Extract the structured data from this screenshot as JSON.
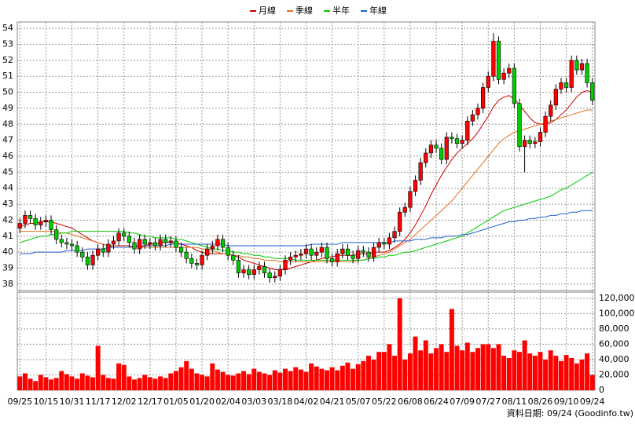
{
  "chart_data": [
    {
      "type": "candlestick",
      "categories": [
        "09/25",
        null,
        null,
        null,
        null,
        "10/15",
        null,
        null,
        null,
        null,
        "10/31",
        null,
        null,
        null,
        null,
        "11/17",
        null,
        null,
        null,
        null,
        "12/02",
        null,
        null,
        null,
        null,
        "12/17",
        null,
        null,
        null,
        null,
        "01/05",
        null,
        null,
        null,
        null,
        "01/20",
        null,
        null,
        null,
        null,
        "02/04",
        null,
        null,
        null,
        null,
        "03/03",
        null,
        null,
        null,
        null,
        "03/18",
        null,
        null,
        null,
        null,
        "04/02",
        null,
        null,
        null,
        null,
        "04/21",
        null,
        null,
        null,
        null,
        "05/07",
        null,
        null,
        null,
        null,
        "05/22",
        null,
        null,
        null,
        null,
        "06/08",
        null,
        null,
        null,
        null,
        "06/24",
        null,
        null,
        null,
        null,
        "07/09",
        null,
        null,
        null,
        null,
        "07/27",
        null,
        null,
        null,
        null,
        "08/11",
        null,
        null,
        null,
        null,
        "08/26",
        null,
        null,
        null,
        null,
        "09/10",
        null,
        null,
        null,
        null,
        "09/24"
      ],
      "open": [
        41.5,
        41.8,
        42.3,
        42.1,
        41.7,
        41.9,
        42.0,
        41.4,
        40.8,
        40.6,
        40.5,
        40.4,
        40.0,
        39.7,
        39.2,
        39.8,
        40.2,
        40.0,
        40.5,
        40.7,
        41.2,
        41.0,
        40.6,
        40.2,
        40.8,
        40.5,
        40.6,
        40.4,
        40.8,
        40.6,
        40.7,
        40.3,
        40.0,
        39.6,
        39.3,
        39.2,
        39.8,
        40.2,
        40.4,
        40.8,
        40.3,
        39.8,
        39.5,
        38.7,
        38.9,
        38.6,
        38.9,
        39.1,
        38.7,
        38.4,
        38.5,
        38.9,
        39.5,
        39.7,
        39.8,
        39.9,
        40.2,
        39.8,
        40.0,
        40.3,
        39.6,
        39.4,
        39.9,
        40.2,
        39.8,
        39.6,
        40.1,
        40.0,
        39.7,
        40.3,
        40.6,
        40.5,
        40.9,
        41.3,
        42.5,
        42.8,
        43.8,
        44.5,
        45.6,
        46.2,
        46.7,
        46.5,
        45.8,
        47.2,
        47.1,
        46.8,
        47.0,
        48.2,
        48.6,
        49.0,
        50.3,
        51.0,
        53.2,
        50.8,
        51.2,
        51.5,
        49.3,
        46.6,
        47.0,
        46.8,
        46.9,
        47.5,
        48.5,
        49.2,
        50.2,
        50.6,
        50.3,
        52.0,
        51.4,
        51.8,
        50.6
      ],
      "high": [
        42.1,
        42.6,
        42.6,
        42.4,
        42.2,
        42.3,
        42.3,
        41.7,
        41.1,
        40.9,
        40.8,
        40.7,
        40.3,
        40.0,
        40.1,
        40.5,
        40.5,
        40.8,
        41.0,
        41.5,
        41.5,
        41.3,
        40.9,
        41.1,
        41.1,
        40.9,
        40.9,
        41.1,
        41.1,
        41.0,
        41.0,
        40.6,
        40.3,
        39.9,
        39.6,
        40.1,
        40.5,
        40.7,
        41.1,
        41.1,
        40.6,
        40.1,
        39.8,
        39.2,
        39.2,
        39.2,
        39.4,
        39.4,
        39.0,
        38.8,
        39.2,
        39.8,
        40.0,
        40.1,
        40.2,
        40.5,
        40.5,
        40.3,
        40.6,
        40.6,
        39.9,
        40.2,
        40.5,
        40.5,
        40.1,
        40.4,
        40.4,
        40.3,
        40.6,
        40.9,
        40.9,
        41.2,
        41.6,
        42.8,
        43.1,
        44.1,
        44.8,
        45.9,
        46.5,
        47.0,
        47.0,
        46.8,
        47.5,
        47.5,
        47.4,
        47.3,
        48.5,
        48.9,
        49.3,
        50.6,
        51.3,
        53.7,
        53.5,
        51.5,
        51.8,
        51.8,
        49.6,
        47.3,
        47.3,
        47.2,
        47.8,
        48.8,
        49.5,
        50.5,
        50.9,
        50.9,
        52.3,
        52.3,
        52.1,
        52.1,
        50.9
      ],
      "low": [
        41.2,
        41.5,
        41.8,
        41.4,
        41.4,
        41.6,
        41.1,
        40.5,
        40.3,
        40.2,
        40.1,
        39.7,
        39.4,
        38.9,
        38.9,
        39.5,
        39.7,
        39.7,
        40.2,
        40.4,
        40.7,
        40.3,
        39.9,
        39.9,
        40.2,
        40.2,
        40.1,
        40.1,
        40.3,
        40.3,
        40.0,
        39.7,
        39.3,
        39.0,
        38.9,
        38.9,
        39.5,
        39.9,
        40.1,
        40.0,
        39.5,
        39.2,
        38.4,
        38.4,
        38.3,
        38.3,
        38.6,
        38.4,
        38.1,
        38.1,
        38.2,
        38.6,
        39.2,
        39.4,
        39.5,
        39.6,
        39.5,
        39.5,
        39.7,
        39.3,
        39.1,
        39.1,
        39.6,
        39.5,
        39.3,
        39.3,
        39.7,
        39.4,
        39.4,
        40.0,
        40.2,
        40.2,
        40.6,
        41.0,
        42.2,
        42.5,
        43.5,
        44.2,
        45.3,
        45.9,
        46.2,
        45.5,
        45.5,
        46.8,
        46.5,
        46.5,
        46.7,
        47.9,
        48.3,
        48.7,
        50.0,
        50.7,
        50.5,
        50.5,
        50.9,
        49.0,
        46.3,
        45.0,
        46.5,
        46.5,
        46.6,
        47.2,
        48.2,
        48.9,
        49.9,
        50.0,
        50.0,
        51.1,
        51.1,
        50.3,
        49.2
      ],
      "close": [
        41.8,
        42.3,
        42.1,
        41.7,
        41.9,
        42.0,
        41.4,
        40.8,
        40.6,
        40.5,
        40.4,
        40.0,
        39.7,
        39.2,
        39.8,
        40.2,
        40.0,
        40.5,
        40.7,
        41.2,
        41.0,
        40.6,
        40.2,
        40.8,
        40.5,
        40.6,
        40.4,
        40.8,
        40.6,
        40.7,
        40.3,
        40.0,
        39.6,
        39.3,
        39.2,
        39.8,
        40.2,
        40.4,
        40.8,
        40.3,
        39.8,
        39.5,
        38.7,
        38.9,
        38.6,
        38.9,
        39.1,
        38.7,
        38.4,
        38.5,
        38.9,
        39.5,
        39.7,
        39.8,
        39.9,
        40.2,
        39.8,
        40.0,
        40.3,
        39.6,
        39.4,
        39.9,
        40.2,
        39.8,
        39.6,
        40.1,
        40.0,
        39.7,
        40.3,
        40.6,
        40.5,
        40.9,
        41.3,
        42.5,
        42.8,
        43.8,
        44.5,
        45.6,
        46.2,
        46.7,
        46.5,
        45.8,
        47.2,
        47.1,
        46.8,
        47.0,
        48.2,
        48.6,
        49.0,
        50.3,
        51.0,
        53.2,
        50.8,
        51.2,
        51.5,
        49.3,
        46.6,
        47.0,
        46.8,
        46.9,
        47.5,
        48.5,
        49.2,
        50.2,
        50.6,
        50.3,
        52.0,
        51.4,
        51.8,
        50.6,
        49.5
      ],
      "up_color": "#ff0000",
      "down_color": "#00cc00",
      "series": [
        {
          "name": "月線",
          "color": "#cc0000",
          "values": [
            41.6,
            41.7,
            41.8,
            41.8,
            41.9,
            41.9,
            41.9,
            41.8,
            41.7,
            41.6,
            41.5,
            41.3,
            41.1,
            40.9,
            40.7,
            40.6,
            40.5,
            40.4,
            40.4,
            40.4,
            40.4,
            40.4,
            40.3,
            40.3,
            40.4,
            40.5,
            40.5,
            40.6,
            40.6,
            40.6,
            40.6,
            40.5,
            40.4,
            40.3,
            40.1,
            40.0,
            39.9,
            39.9,
            39.9,
            39.9,
            39.9,
            39.8,
            39.7,
            39.5,
            39.4,
            39.3,
            39.2,
            39.1,
            39.0,
            38.9,
            38.9,
            38.9,
            39.0,
            39.1,
            39.2,
            39.3,
            39.4,
            39.5,
            39.6,
            39.7,
            39.7,
            39.8,
            39.8,
            39.8,
            39.8,
            39.9,
            39.9,
            39.9,
            40.0,
            40.0,
            40.0,
            40.1,
            40.3,
            40.5,
            40.8,
            41.2,
            41.7,
            42.3,
            42.9,
            43.6,
            44.2,
            44.8,
            45.3,
            45.8,
            46.2,
            46.5,
            46.8,
            47.1,
            47.5,
            48.0,
            48.5,
            49.1,
            49.5,
            49.7,
            49.8,
            49.6,
            49.2,
            48.8,
            48.4,
            48.1,
            48.0,
            48.0,
            48.1,
            48.3,
            48.6,
            48.9,
            49.3,
            49.7,
            50.0,
            50.1,
            50.0
          ]
        },
        {
          "name": "季線",
          "color": "#e07020",
          "values": [
            41.3,
            41.3,
            41.3,
            41.3,
            41.3,
            41.3,
            41.3,
            41.3,
            41.2,
            41.2,
            41.1,
            41.0,
            40.9,
            40.8,
            40.7,
            40.6,
            40.5,
            40.4,
            40.3,
            40.3,
            40.3,
            40.3,
            40.3,
            40.3,
            40.3,
            40.3,
            40.3,
            40.3,
            40.3,
            40.3,
            40.3,
            40.3,
            40.3,
            40.3,
            40.3,
            40.2,
            40.2,
            40.1,
            40.0,
            39.9,
            39.9,
            39.8,
            39.8,
            39.7,
            39.7,
            39.6,
            39.6,
            39.5,
            39.5,
            39.5,
            39.4,
            39.4,
            39.4,
            39.4,
            39.4,
            39.4,
            39.4,
            39.4,
            39.4,
            39.4,
            39.4,
            39.4,
            39.4,
            39.4,
            39.4,
            39.5,
            39.5,
            39.6,
            39.7,
            39.8,
            39.9,
            40.0,
            40.2,
            40.4,
            40.6,
            40.8,
            41.1,
            41.4,
            41.7,
            42.0,
            42.3,
            42.6,
            42.9,
            43.2,
            43.6,
            44.0,
            44.4,
            44.8,
            45.2,
            45.6,
            46.0,
            46.4,
            46.8,
            47.1,
            47.3,
            47.5,
            47.6,
            47.7,
            47.8,
            47.9,
            48.0,
            48.1,
            48.2,
            48.3,
            48.4,
            48.5,
            48.6,
            48.7,
            48.8,
            48.9,
            48.9
          ]
        },
        {
          "name": "半年",
          "color": "#00cc00",
          "values": [
            40.6,
            40.7,
            40.8,
            40.9,
            41.0,
            41.0,
            41.1,
            41.1,
            41.2,
            41.2,
            41.3,
            41.3,
            41.3,
            41.3,
            41.3,
            41.3,
            41.3,
            41.3,
            41.3,
            41.3,
            41.3,
            41.2,
            41.2,
            41.1,
            41.0,
            41.0,
            40.9,
            40.9,
            40.9,
            40.9,
            40.8,
            40.8,
            40.7,
            40.6,
            40.5,
            40.4,
            40.3,
            40.2,
            40.2,
            40.1,
            40.1,
            40.0,
            40.0,
            39.9,
            39.9,
            39.8,
            39.8,
            39.7,
            39.7,
            39.6,
            39.6,
            39.6,
            39.6,
            39.5,
            39.5,
            39.5,
            39.5,
            39.5,
            39.5,
            39.5,
            39.5,
            39.5,
            39.5,
            39.5,
            39.5,
            39.5,
            39.5,
            39.6,
            39.6,
            39.7,
            39.7,
            39.8,
            39.8,
            39.9,
            40.0,
            40.0,
            40.1,
            40.2,
            40.3,
            40.4,
            40.5,
            40.6,
            40.7,
            40.8,
            40.9,
            41.0,
            41.2,
            41.4,
            41.6,
            41.8,
            42.0,
            42.2,
            42.4,
            42.6,
            42.7,
            42.8,
            42.9,
            43.0,
            43.1,
            43.2,
            43.3,
            43.4,
            43.5,
            43.7,
            43.9,
            44.0,
            44.2,
            44.4,
            44.6,
            44.8,
            45.0
          ]
        },
        {
          "name": "年線",
          "color": "#1f5fcf",
          "values": [
            39.9,
            39.9,
            39.9,
            40.0,
            40.0,
            40.0,
            40.0,
            40.0,
            40.0,
            40.1,
            40.1,
            40.1,
            40.1,
            40.2,
            40.2,
            40.2,
            40.2,
            40.3,
            40.3,
            40.3,
            40.3,
            40.3,
            40.4,
            40.4,
            40.4,
            40.4,
            40.4,
            40.4,
            40.4,
            40.5,
            40.5,
            40.5,
            40.5,
            40.5,
            40.5,
            40.5,
            40.5,
            40.5,
            40.5,
            40.5,
            40.4,
            40.4,
            40.4,
            40.4,
            40.4,
            40.4,
            40.4,
            40.4,
            40.4,
            40.4,
            40.4,
            40.4,
            40.4,
            40.4,
            40.4,
            40.4,
            40.5,
            40.5,
            40.5,
            40.5,
            40.5,
            40.5,
            40.6,
            40.6,
            40.6,
            40.6,
            40.6,
            40.6,
            40.6,
            40.6,
            40.6,
            40.6,
            40.7,
            40.7,
            40.7,
            40.7,
            40.8,
            40.8,
            40.8,
            40.9,
            40.9,
            40.9,
            41.0,
            41.0,
            41.0,
            41.1,
            41.1,
            41.2,
            41.3,
            41.4,
            41.5,
            41.6,
            41.7,
            41.8,
            41.9,
            41.9,
            42.0,
            42.0,
            42.1,
            42.1,
            42.2,
            42.2,
            42.3,
            42.3,
            42.4,
            42.4,
            42.5,
            42.5,
            42.6,
            42.6,
            42.6
          ]
        }
      ],
      "ylim": [
        37.6,
        54.4
      ],
      "yticks": [
        38,
        39,
        40,
        41,
        42,
        43,
        44,
        45,
        46,
        47,
        48,
        49,
        50,
        51,
        52,
        53,
        54
      ],
      "grid": true
    },
    {
      "type": "bar",
      "color": "#ff0000",
      "values": [
        18000,
        22000,
        15000,
        12000,
        20000,
        17000,
        14000,
        16000,
        25000,
        21000,
        18000,
        15000,
        22000,
        19000,
        17000,
        58000,
        20000,
        16000,
        15000,
        35000,
        33000,
        18000,
        14000,
        16000,
        20000,
        17000,
        15000,
        18000,
        16000,
        22000,
        25000,
        30000,
        38000,
        28000,
        22000,
        20000,
        18000,
        35000,
        27000,
        24000,
        20000,
        19000,
        22000,
        25000,
        21000,
        28000,
        24000,
        22000,
        20000,
        26000,
        23000,
        28000,
        25000,
        30000,
        27000,
        24000,
        35000,
        31000,
        28000,
        26000,
        30000,
        26000,
        32000,
        36000,
        28000,
        34000,
        38000,
        45000,
        40000,
        50000,
        50000,
        60000,
        45000,
        120000,
        40000,
        48000,
        70000,
        52000,
        65000,
        48000,
        55000,
        60000,
        50000,
        106000,
        58000,
        52000,
        62000,
        50000,
        55000,
        60000,
        60000,
        55000,
        60000,
        45000,
        42000,
        52000,
        50000,
        65000,
        48000,
        45000,
        50000,
        40000,
        52000,
        45000,
        38000,
        46000,
        42000,
        35000,
        40000,
        48000,
        20000
      ],
      "ylim": [
        0,
        128000
      ],
      "yticks": [
        0,
        {
          "value": 20000,
          "label": "20,000"
        },
        {
          "value": 40000,
          "label": "40,000"
        },
        {
          "value": 60000,
          "label": "60,000"
        },
        {
          "value": 80000,
          "label": "80,000"
        },
        {
          "value": 100000,
          "label": "100,000"
        },
        {
          "value": 120000,
          "label": "120,000"
        }
      ],
      "grid": true,
      "source": "資料日期: 09/24 (Goodinfo.tw)"
    }
  ]
}
